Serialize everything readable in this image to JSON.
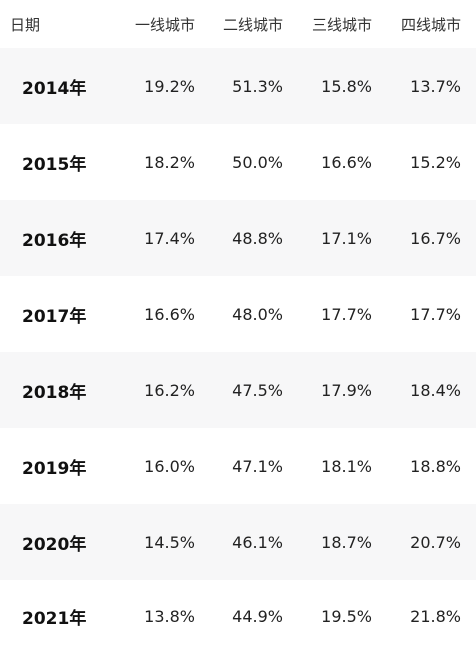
{
  "columns": [
    "日期",
    "一线城市",
    "二线城市",
    "三线城市",
    "四线城市"
  ],
  "rows": [
    {
      "year": "2014年",
      "values": [
        "19.2%",
        "51.3%",
        "15.8%",
        "13.7%"
      ]
    },
    {
      "year": "2015年",
      "values": [
        "18.2%",
        "50.0%",
        "16.6%",
        "15.2%"
      ]
    },
    {
      "year": "2016年",
      "values": [
        "17.4%",
        "48.8%",
        "17.1%",
        "16.7%"
      ]
    },
    {
      "year": "2017年",
      "values": [
        "16.6%",
        "48.0%",
        "17.7%",
        "17.7%"
      ]
    },
    {
      "year": "2018年",
      "values": [
        "16.2%",
        "47.5%",
        "17.9%",
        "18.4%"
      ]
    },
    {
      "year": "2019年",
      "values": [
        "16.0%",
        "47.1%",
        "18.1%",
        "18.8%"
      ]
    },
    {
      "year": "2020年",
      "values": [
        "14.5%",
        "46.1%",
        "18.7%",
        "20.7%"
      ]
    },
    {
      "year": "2021年",
      "values": [
        "13.8%",
        "44.9%",
        "19.5%",
        "21.8%"
      ]
    }
  ]
}
